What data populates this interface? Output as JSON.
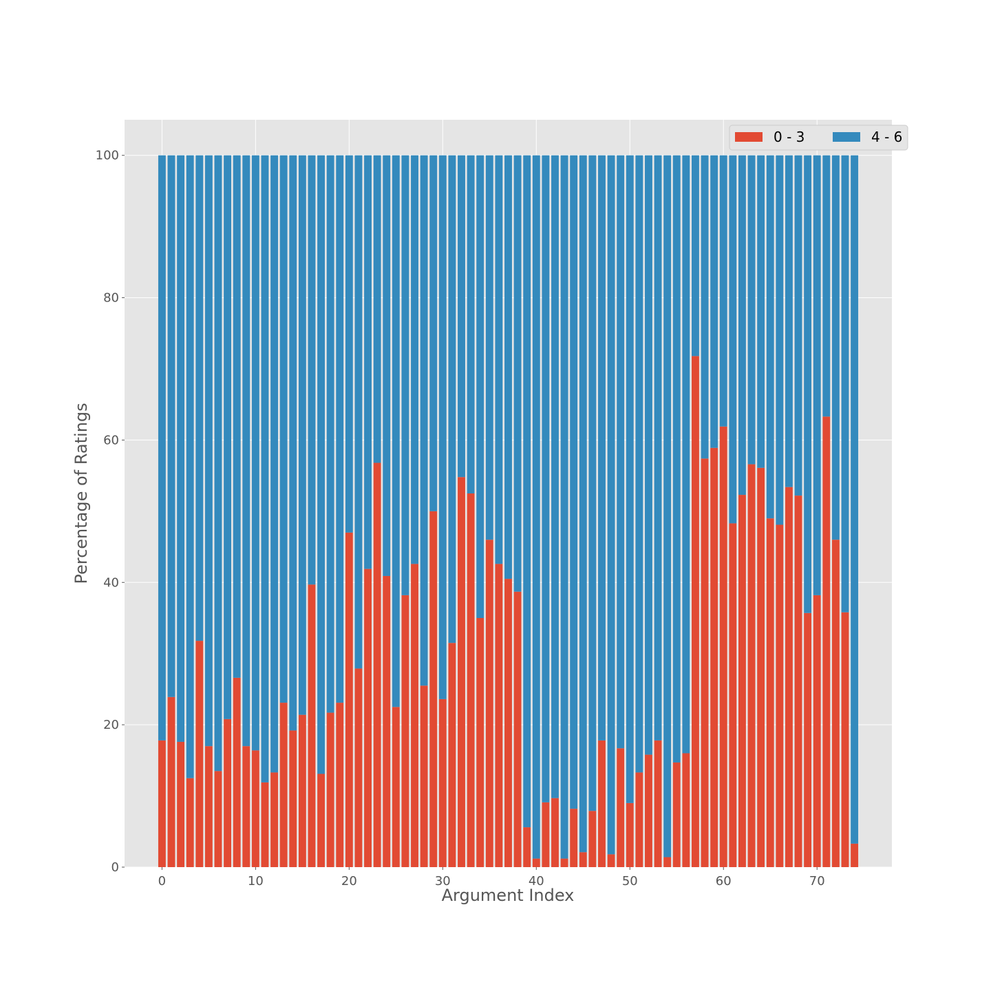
{
  "chart_data": {
    "type": "bar",
    "stacked": true,
    "title": "",
    "xlabel": "Argument Index",
    "ylabel": "Percentage of Ratings",
    "xlim": [
      -4,
      78
    ],
    "ylim": [
      0,
      105
    ],
    "xticks": [
      0,
      10,
      20,
      30,
      40,
      50,
      60,
      70
    ],
    "yticks": [
      0,
      20,
      40,
      60,
      80,
      100
    ],
    "grid": true,
    "legend_position": "top-right",
    "series": [
      {
        "name": "0 - 3",
        "color": "#E24A33",
        "values": [
          17.8,
          23.9,
          17.6,
          12.5,
          31.8,
          17.0,
          13.5,
          20.8,
          26.6,
          17.0,
          16.4,
          11.9,
          13.3,
          23.1,
          19.2,
          21.4,
          39.7,
          13.1,
          21.7,
          23.1,
          47.0,
          27.9,
          41.9,
          56.8,
          40.9,
          22.5,
          38.2,
          42.6,
          25.5,
          50.0,
          23.6,
          31.5,
          54.8,
          52.5,
          35.0,
          46.0,
          42.6,
          40.5,
          38.7,
          5.6,
          1.2,
          9.1,
          9.7,
          1.2,
          8.2,
          2.1,
          7.9,
          17.8,
          1.8,
          16.7,
          9.0,
          13.3,
          15.8,
          17.8,
          1.4,
          14.7,
          16.0,
          71.8,
          57.4,
          58.9,
          61.9,
          48.3,
          52.3,
          56.6,
          56.1,
          49.0,
          48.1,
          53.4,
          52.2,
          35.7,
          38.2,
          63.3,
          46.0,
          35.8,
          3.3
        ]
      },
      {
        "name": "4 - 6",
        "color": "#348ABD",
        "values": [
          82.2,
          76.1,
          82.4,
          87.5,
          68.2,
          83.0,
          86.5,
          79.2,
          73.4,
          83.0,
          83.6,
          88.1,
          86.7,
          76.9,
          80.8,
          78.6,
          60.3,
          86.9,
          78.3,
          76.9,
          53.0,
          72.1,
          58.1,
          43.2,
          59.1,
          77.5,
          61.8,
          57.4,
          74.5,
          50.0,
          76.4,
          68.5,
          45.2,
          47.5,
          65.0,
          54.0,
          57.4,
          59.5,
          61.3,
          94.4,
          98.8,
          90.9,
          90.3,
          98.8,
          91.8,
          97.9,
          92.1,
          82.2,
          98.2,
          83.3,
          91.0,
          86.7,
          84.2,
          82.2,
          98.6,
          85.3,
          84.0,
          28.2,
          42.6,
          41.1,
          38.1,
          51.7,
          47.7,
          43.4,
          43.9,
          51.0,
          51.9,
          46.6,
          47.8,
          64.3,
          61.8,
          36.7,
          54.0,
          64.2,
          96.7
        ]
      }
    ]
  }
}
